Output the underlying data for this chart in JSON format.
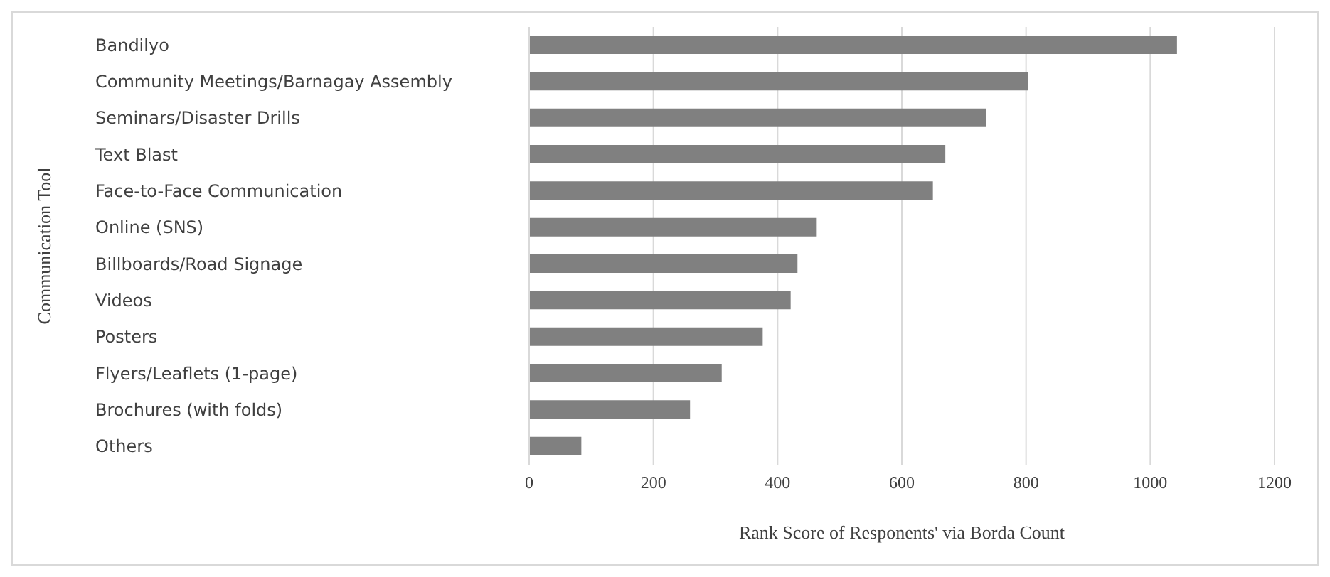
{
  "chart_data": {
    "type": "bar",
    "orientation": "horizontal",
    "xlabel": "Rank Score of Responents' via Borda Count",
    "ylabel": "Communication Tool",
    "categories": [
      "Bandilyo",
      "Community Meetings/Barnagay Assembly",
      "Seminars/Disaster Drills",
      "Text Blast",
      "Face-to-Face Communication",
      "Online (SNS)",
      "Billboards/Road Signage",
      "Videos",
      "Posters",
      "Flyers/Leaflets (1-page)",
      "Brochures (with folds)",
      "Others"
    ],
    "values": [
      1043,
      803,
      736,
      670,
      650,
      463,
      432,
      421,
      376,
      310,
      259,
      84
    ],
    "color": "#808080",
    "xlim": [
      0,
      1200
    ],
    "xticks": [
      0,
      200,
      400,
      600,
      800,
      1000,
      1200
    ],
    "grid": "x"
  }
}
